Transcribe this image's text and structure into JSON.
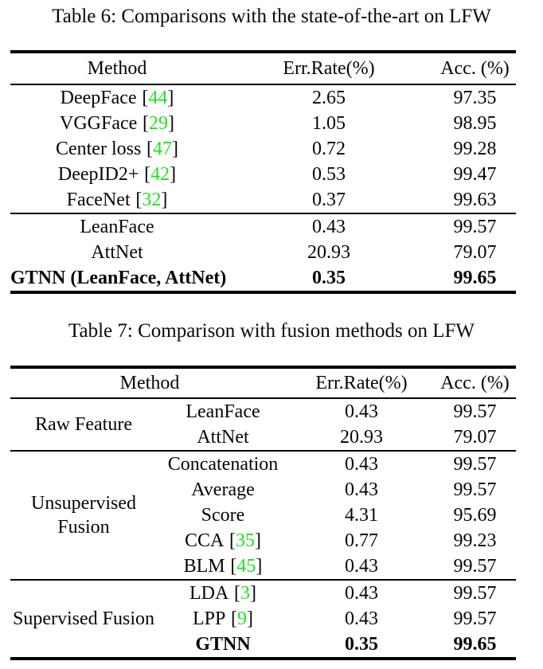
{
  "colors": {
    "background": "#ffffff",
    "text": "#060606",
    "citation_green": "#1fe31f",
    "rule": "#000000"
  },
  "brackets": {
    "open": "[",
    "close": "]"
  },
  "table6": {
    "caption": "Table 6: Comparisons with the state-of-the-art on LFW",
    "headers": [
      "Method",
      "Err.Rate(%)",
      "Acc. (%)"
    ],
    "rows_sota": [
      {
        "method": "DeepFace",
        "cite": "44",
        "err": "2.65",
        "acc": "97.35"
      },
      {
        "method": "VGGFace",
        "cite": "29",
        "err": "1.05",
        "acc": "98.95"
      },
      {
        "method": "Center loss",
        "cite": "47",
        "err": "0.72",
        "acc": "99.28"
      },
      {
        "method": "DeepID2+",
        "cite": "42",
        "err": "0.53",
        "acc": "99.47"
      },
      {
        "method": "FaceNet",
        "cite": "32",
        "err": "0.37",
        "acc": "99.63"
      }
    ],
    "rows_ours": [
      {
        "method": "LeanFace",
        "err": "0.43",
        "acc": "99.57"
      },
      {
        "method": "AttNet",
        "err": "20.93",
        "acc": "79.07"
      },
      {
        "method": "GTNN (LeanFace, AttNet)",
        "err": "0.35",
        "acc": "99.65"
      }
    ]
  },
  "table7": {
    "caption": "Table 7: Comparison with fusion methods on LFW",
    "headers": [
      "Method",
      "Err.Rate(%)",
      "Acc. (%)"
    ],
    "groups": [
      {
        "label": "Raw Feature",
        "rows": [
          {
            "method": "LeanFace",
            "err": "0.43",
            "acc": "99.57"
          },
          {
            "method": "AttNet",
            "err": "20.93",
            "acc": "79.07"
          }
        ]
      },
      {
        "label": "Unsupervised Fusion",
        "rows": [
          {
            "method": "Concatenation",
            "err": "0.43",
            "acc": "99.57"
          },
          {
            "method": "Average",
            "err": "0.43",
            "acc": "99.57"
          },
          {
            "method": "Score",
            "err": "4.31",
            "acc": "95.69"
          },
          {
            "method": "CCA",
            "cite": "35",
            "err": "0.77",
            "acc": "99.23"
          },
          {
            "method": "BLM",
            "cite": "45",
            "err": "0.43",
            "acc": "99.57"
          }
        ]
      },
      {
        "label": "Supervised Fusion",
        "rows": [
          {
            "method": "LDA",
            "cite": "3",
            "err": "0.43",
            "acc": "99.57"
          },
          {
            "method": "LPP",
            "cite": "9",
            "err": "0.43",
            "acc": "99.57"
          },
          {
            "method": "GTNN",
            "err": "0.35",
            "acc": "99.65"
          }
        ]
      }
    ]
  }
}
